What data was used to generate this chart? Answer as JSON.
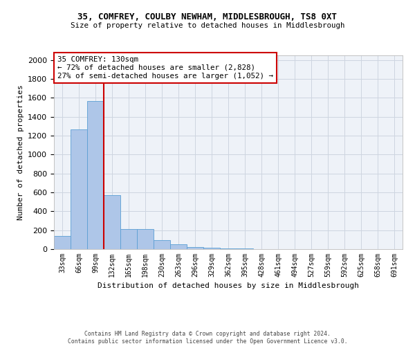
{
  "title": "35, COMFREY, COULBY NEWHAM, MIDDLESBROUGH, TS8 0XT",
  "subtitle": "Size of property relative to detached houses in Middlesbrough",
  "xlabel": "Distribution of detached houses by size in Middlesbrough",
  "ylabel": "Number of detached properties",
  "bin_labels": [
    "33sqm",
    "66sqm",
    "99sqm",
    "132sqm",
    "165sqm",
    "198sqm",
    "230sqm",
    "263sqm",
    "296sqm",
    "329sqm",
    "362sqm",
    "395sqm",
    "428sqm",
    "461sqm",
    "494sqm",
    "527sqm",
    "559sqm",
    "592sqm",
    "625sqm",
    "658sqm",
    "691sqm"
  ],
  "values": [
    140,
    1270,
    1570,
    570,
    215,
    215,
    95,
    50,
    25,
    15,
    5,
    5,
    2,
    2,
    1,
    1,
    1,
    1,
    1,
    1,
    0
  ],
  "bar_color": "#aec6e8",
  "bar_edge_color": "#5a9fd4",
  "property_line_x": 3,
  "property_line_color": "#cc0000",
  "annotation_title": "35 COMFREY: 130sqm",
  "annotation_line1": "← 72% of detached houses are smaller (2,828)",
  "annotation_line2": "27% of semi-detached houses are larger (1,052) →",
  "grid_color": "#cdd5e0",
  "background_color": "#eef2f8",
  "ylim": [
    0,
    2050
  ],
  "yticks": [
    0,
    200,
    400,
    600,
    800,
    1000,
    1200,
    1400,
    1600,
    1800,
    2000
  ],
  "footer_line1": "Contains HM Land Registry data © Crown copyright and database right 2024.",
  "footer_line2": "Contains public sector information licensed under the Open Government Licence v3.0."
}
